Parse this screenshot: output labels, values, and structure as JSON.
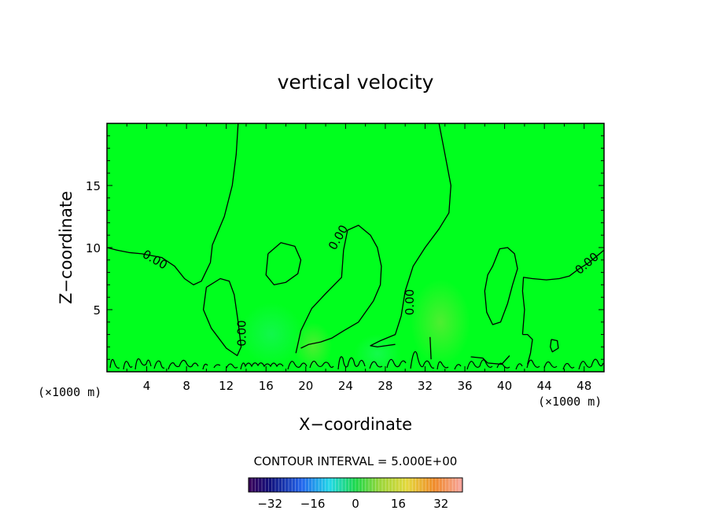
{
  "chart_data": {
    "type": "heatmap",
    "title": "vertical velocity",
    "xlabel": "X−coordinate",
    "ylabel": "Z−coordinate",
    "x_unit_left": "(×1000 m)",
    "x_unit_right": "(×1000 m)",
    "xlim": [
      0,
      50
    ],
    "ylim": [
      0,
      20
    ],
    "x_ticks": [
      4,
      8,
      12,
      16,
      20,
      24,
      28,
      32,
      36,
      40,
      44,
      48
    ],
    "y_ticks": [
      5,
      10,
      15
    ],
    "contour_interval_label": "CONTOUR INTERVAL = 5.000E+00",
    "colorbar": {
      "min": -40,
      "max": 40,
      "ticks": [
        -32,
        -16,
        0,
        16,
        32
      ],
      "tick_labels": [
        "−32",
        "−16",
        "0",
        "16",
        "32"
      ]
    },
    "field_color": "#00ff1e",
    "zero_contour_label": "0.00",
    "zero_contour_label_positions": [
      [
        4.8,
        9.0
      ],
      [
        13.6,
        3.1
      ],
      [
        23.3,
        10.8
      ],
      [
        30.5,
        5.6
      ],
      [
        48.3,
        8.7
      ]
    ],
    "zero_contours": [
      [
        [
          13.2,
          20
        ],
        [
          13.0,
          17.5
        ],
        [
          12.6,
          15
        ],
        [
          11.8,
          12.5
        ],
        [
          10.6,
          10.2
        ],
        [
          10.4,
          8.8
        ],
        [
          9.5,
          7.3
        ],
        [
          8.7,
          7.0
        ],
        [
          7.8,
          7.5
        ],
        [
          6.8,
          8.5
        ],
        [
          5.5,
          9.2
        ],
        [
          3.5,
          9.5
        ],
        [
          2.2,
          9.6
        ],
        [
          1.0,
          9.8
        ],
        [
          0.0,
          10.0
        ]
      ],
      [
        [
          33.4,
          20
        ],
        [
          34.0,
          17.5
        ],
        [
          34.6,
          15
        ],
        [
          34.4,
          12.8
        ],
        [
          33.4,
          11.5
        ],
        [
          32.0,
          10.0
        ],
        [
          30.8,
          8.5
        ],
        [
          30.0,
          6.5
        ],
        [
          29.6,
          4.5
        ],
        [
          29.0,
          3.0
        ],
        [
          27.5,
          2.5
        ],
        [
          26.5,
          2.1
        ],
        [
          27.2,
          2.0
        ],
        [
          29.0,
          2.2
        ]
      ],
      [
        [
          10.0,
          6.8
        ],
        [
          11.4,
          7.5
        ],
        [
          12.3,
          7.3
        ],
        [
          12.8,
          6.2
        ],
        [
          13.2,
          4.0
        ],
        [
          13.5,
          2.0
        ],
        [
          13.1,
          1.3
        ],
        [
          12.0,
          1.9
        ],
        [
          10.5,
          3.5
        ],
        [
          9.7,
          5.0
        ],
        [
          10.0,
          6.8
        ]
      ],
      [
        [
          16.2,
          9.5
        ],
        [
          17.5,
          10.4
        ],
        [
          18.9,
          10.1
        ],
        [
          19.5,
          9.0
        ],
        [
          19.2,
          7.9
        ],
        [
          18.0,
          7.2
        ],
        [
          16.8,
          7.0
        ],
        [
          16.0,
          7.8
        ],
        [
          16.2,
          9.5
        ]
      ],
      [
        [
          19.0,
          1.5
        ],
        [
          19.5,
          3.3
        ],
        [
          20.6,
          5.1
        ],
        [
          22.0,
          6.3
        ],
        [
          23.6,
          7.6
        ],
        [
          23.8,
          9.8
        ],
        [
          24.2,
          11.4
        ],
        [
          25.3,
          11.8
        ],
        [
          26.5,
          11.0
        ],
        [
          27.2,
          10.0
        ],
        [
          27.6,
          8.5
        ],
        [
          27.5,
          7.0
        ],
        [
          26.8,
          5.7
        ],
        [
          25.3,
          4.0
        ],
        [
          23.8,
          3.3
        ],
        [
          22.6,
          2.7
        ],
        [
          21.5,
          2.4
        ],
        [
          20.3,
          2.2
        ],
        [
          19.5,
          1.9
        ]
      ],
      [
        [
          38.8,
          8.5
        ],
        [
          39.5,
          9.9
        ],
        [
          40.3,
          10.0
        ],
        [
          41.0,
          9.5
        ],
        [
          41.3,
          8.3
        ],
        [
          40.8,
          7.0
        ],
        [
          40.3,
          5.5
        ],
        [
          39.6,
          4.0
        ],
        [
          38.8,
          3.8
        ],
        [
          38.2,
          4.8
        ],
        [
          38.0,
          6.5
        ],
        [
          38.3,
          7.8
        ],
        [
          38.8,
          8.5
        ]
      ],
      [
        [
          41.8,
          3.0
        ],
        [
          42.0,
          5.0
        ],
        [
          41.8,
          6.5
        ],
        [
          41.9,
          7.6
        ],
        [
          42.8,
          7.5
        ],
        [
          44.2,
          7.4
        ],
        [
          45.5,
          7.5
        ],
        [
          46.5,
          7.7
        ],
        [
          47.5,
          8.3
        ],
        [
          48.5,
          8.8
        ],
        [
          50.0,
          9.8
        ]
      ],
      [
        [
          42.3,
          0.6
        ],
        [
          42.6,
          1.5
        ],
        [
          42.8,
          2.6
        ],
        [
          42.3,
          3.0
        ],
        [
          41.8,
          3.0
        ]
      ],
      [
        [
          32.5,
          2.8
        ],
        [
          32.6,
          1.0
        ]
      ],
      [
        [
          36.6,
          1.2
        ],
        [
          37.8,
          1.1
        ],
        [
          38.3,
          0.7
        ],
        [
          39.7,
          0.6
        ],
        [
          40.5,
          1.3
        ]
      ],
      [
        [
          44.7,
          2.6
        ],
        [
          45.3,
          2.5
        ],
        [
          45.4,
          1.9
        ],
        [
          44.8,
          1.6
        ],
        [
          44.6,
          2.0
        ],
        [
          44.7,
          2.6
        ]
      ]
    ]
  }
}
